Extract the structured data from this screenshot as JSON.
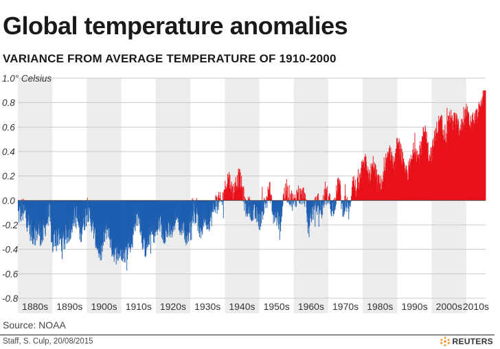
{
  "header": {
    "title": "Global temperature anomalies",
    "subtitle": "VARIANCE FROM AVERAGE TEMPERATURE OF 1910-2000"
  },
  "footer": {
    "source": "Source: NOAA",
    "credit": "Staff, S. Culp, 20/08/2015",
    "brand": "REUTERS"
  },
  "colors": {
    "positive": "#e8121a",
    "negative": "#1e5fb0",
    "band": "#ececec",
    "grid": "#c8c8c8",
    "zero": "#555555"
  },
  "chart_data": {
    "type": "bar",
    "title": "",
    "ylabel": "",
    "y_unit_label": "1.0° Celsius",
    "ylim": [
      -0.8,
      1.0
    ],
    "yticks": [
      "1.0° Celsius",
      "0.8",
      "0.6",
      "0.4",
      "0.2",
      "0.0",
      "-0.2",
      "-0.4",
      "-0.6",
      "-0.8"
    ],
    "xlim": [
      1880,
      2015.6
    ],
    "decades": [
      "1880s",
      "1890s",
      "1900s",
      "1910s",
      "1920s",
      "1930s",
      "1940s",
      "1950s",
      "1960s",
      "1970s",
      "1980s",
      "1990s",
      "2000s",
      "2010s"
    ],
    "resolution": "monthly",
    "legend": "none",
    "grid": true,
    "series_annual": {
      "name": "",
      "years": [
        1880,
        1881,
        1882,
        1883,
        1884,
        1885,
        1886,
        1887,
        1888,
        1889,
        1890,
        1891,
        1892,
        1893,
        1894,
        1895,
        1896,
        1897,
        1898,
        1899,
        1900,
        1901,
        1902,
        1903,
        1904,
        1905,
        1906,
        1907,
        1908,
        1909,
        1910,
        1911,
        1912,
        1913,
        1914,
        1915,
        1916,
        1917,
        1918,
        1919,
        1920,
        1921,
        1922,
        1923,
        1924,
        1925,
        1926,
        1927,
        1928,
        1929,
        1930,
        1931,
        1932,
        1933,
        1934,
        1935,
        1936,
        1937,
        1938,
        1939,
        1940,
        1941,
        1942,
        1943,
        1944,
        1945,
        1946,
        1947,
        1948,
        1949,
        1950,
        1951,
        1952,
        1953,
        1954,
        1955,
        1956,
        1957,
        1958,
        1959,
        1960,
        1961,
        1962,
        1963,
        1964,
        1965,
        1966,
        1967,
        1968,
        1969,
        1970,
        1971,
        1972,
        1973,
        1974,
        1975,
        1976,
        1977,
        1978,
        1979,
        1980,
        1981,
        1982,
        1983,
        1984,
        1985,
        1986,
        1987,
        1988,
        1989,
        1990,
        1991,
        1992,
        1993,
        1994,
        1995,
        1996,
        1997,
        1998,
        1999,
        2000,
        2001,
        2002,
        2003,
        2004,
        2005,
        2006,
        2007,
        2008,
        2009,
        2010,
        2011,
        2012,
        2013,
        2014,
        2015
      ],
      "values": [
        -0.12,
        -0.08,
        -0.1,
        -0.18,
        -0.27,
        -0.25,
        -0.24,
        -0.3,
        -0.18,
        -0.1,
        -0.36,
        -0.27,
        -0.3,
        -0.33,
        -0.3,
        -0.23,
        -0.12,
        -0.13,
        -0.26,
        -0.17,
        -0.08,
        -0.15,
        -0.26,
        -0.37,
        -0.45,
        -0.29,
        -0.21,
        -0.38,
        -0.43,
        -0.44,
        -0.41,
        -0.43,
        -0.35,
        -0.34,
        -0.16,
        -0.11,
        -0.33,
        -0.4,
        -0.29,
        -0.27,
        -0.26,
        -0.18,
        -0.28,
        -0.26,
        -0.25,
        -0.22,
        -0.1,
        -0.21,
        -0.2,
        -0.34,
        -0.14,
        -0.09,
        -0.16,
        -0.28,
        -0.12,
        -0.18,
        -0.14,
        -0.02,
        -0.01,
        -0.02,
        0.09,
        0.2,
        0.07,
        0.09,
        0.2,
        0.09,
        -0.07,
        -0.04,
        -0.11,
        -0.11,
        -0.17,
        -0.07,
        0.01,
        0.08,
        -0.13,
        -0.14,
        -0.19,
        0.05,
        0.06,
        0.03,
        -0.03,
        0.06,
        0.03,
        0.05,
        -0.2,
        -0.11,
        -0.06,
        -0.02,
        -0.08,
        0.05,
        0.03,
        -0.08,
        0.01,
        0.16,
        -0.07,
        -0.01,
        -0.1,
        0.18,
        0.07,
        0.16,
        0.26,
        0.32,
        0.14,
        0.31,
        0.16,
        0.12,
        0.18,
        0.32,
        0.39,
        0.27,
        0.45,
        0.4,
        0.22,
        0.23,
        0.31,
        0.45,
        0.33,
        0.46,
        0.61,
        0.38,
        0.39,
        0.54,
        0.63,
        0.62,
        0.53,
        0.68,
        0.64,
        0.66,
        0.54,
        0.64,
        0.72,
        0.61,
        0.64,
        0.68,
        0.75,
        0.9
      ]
    }
  }
}
